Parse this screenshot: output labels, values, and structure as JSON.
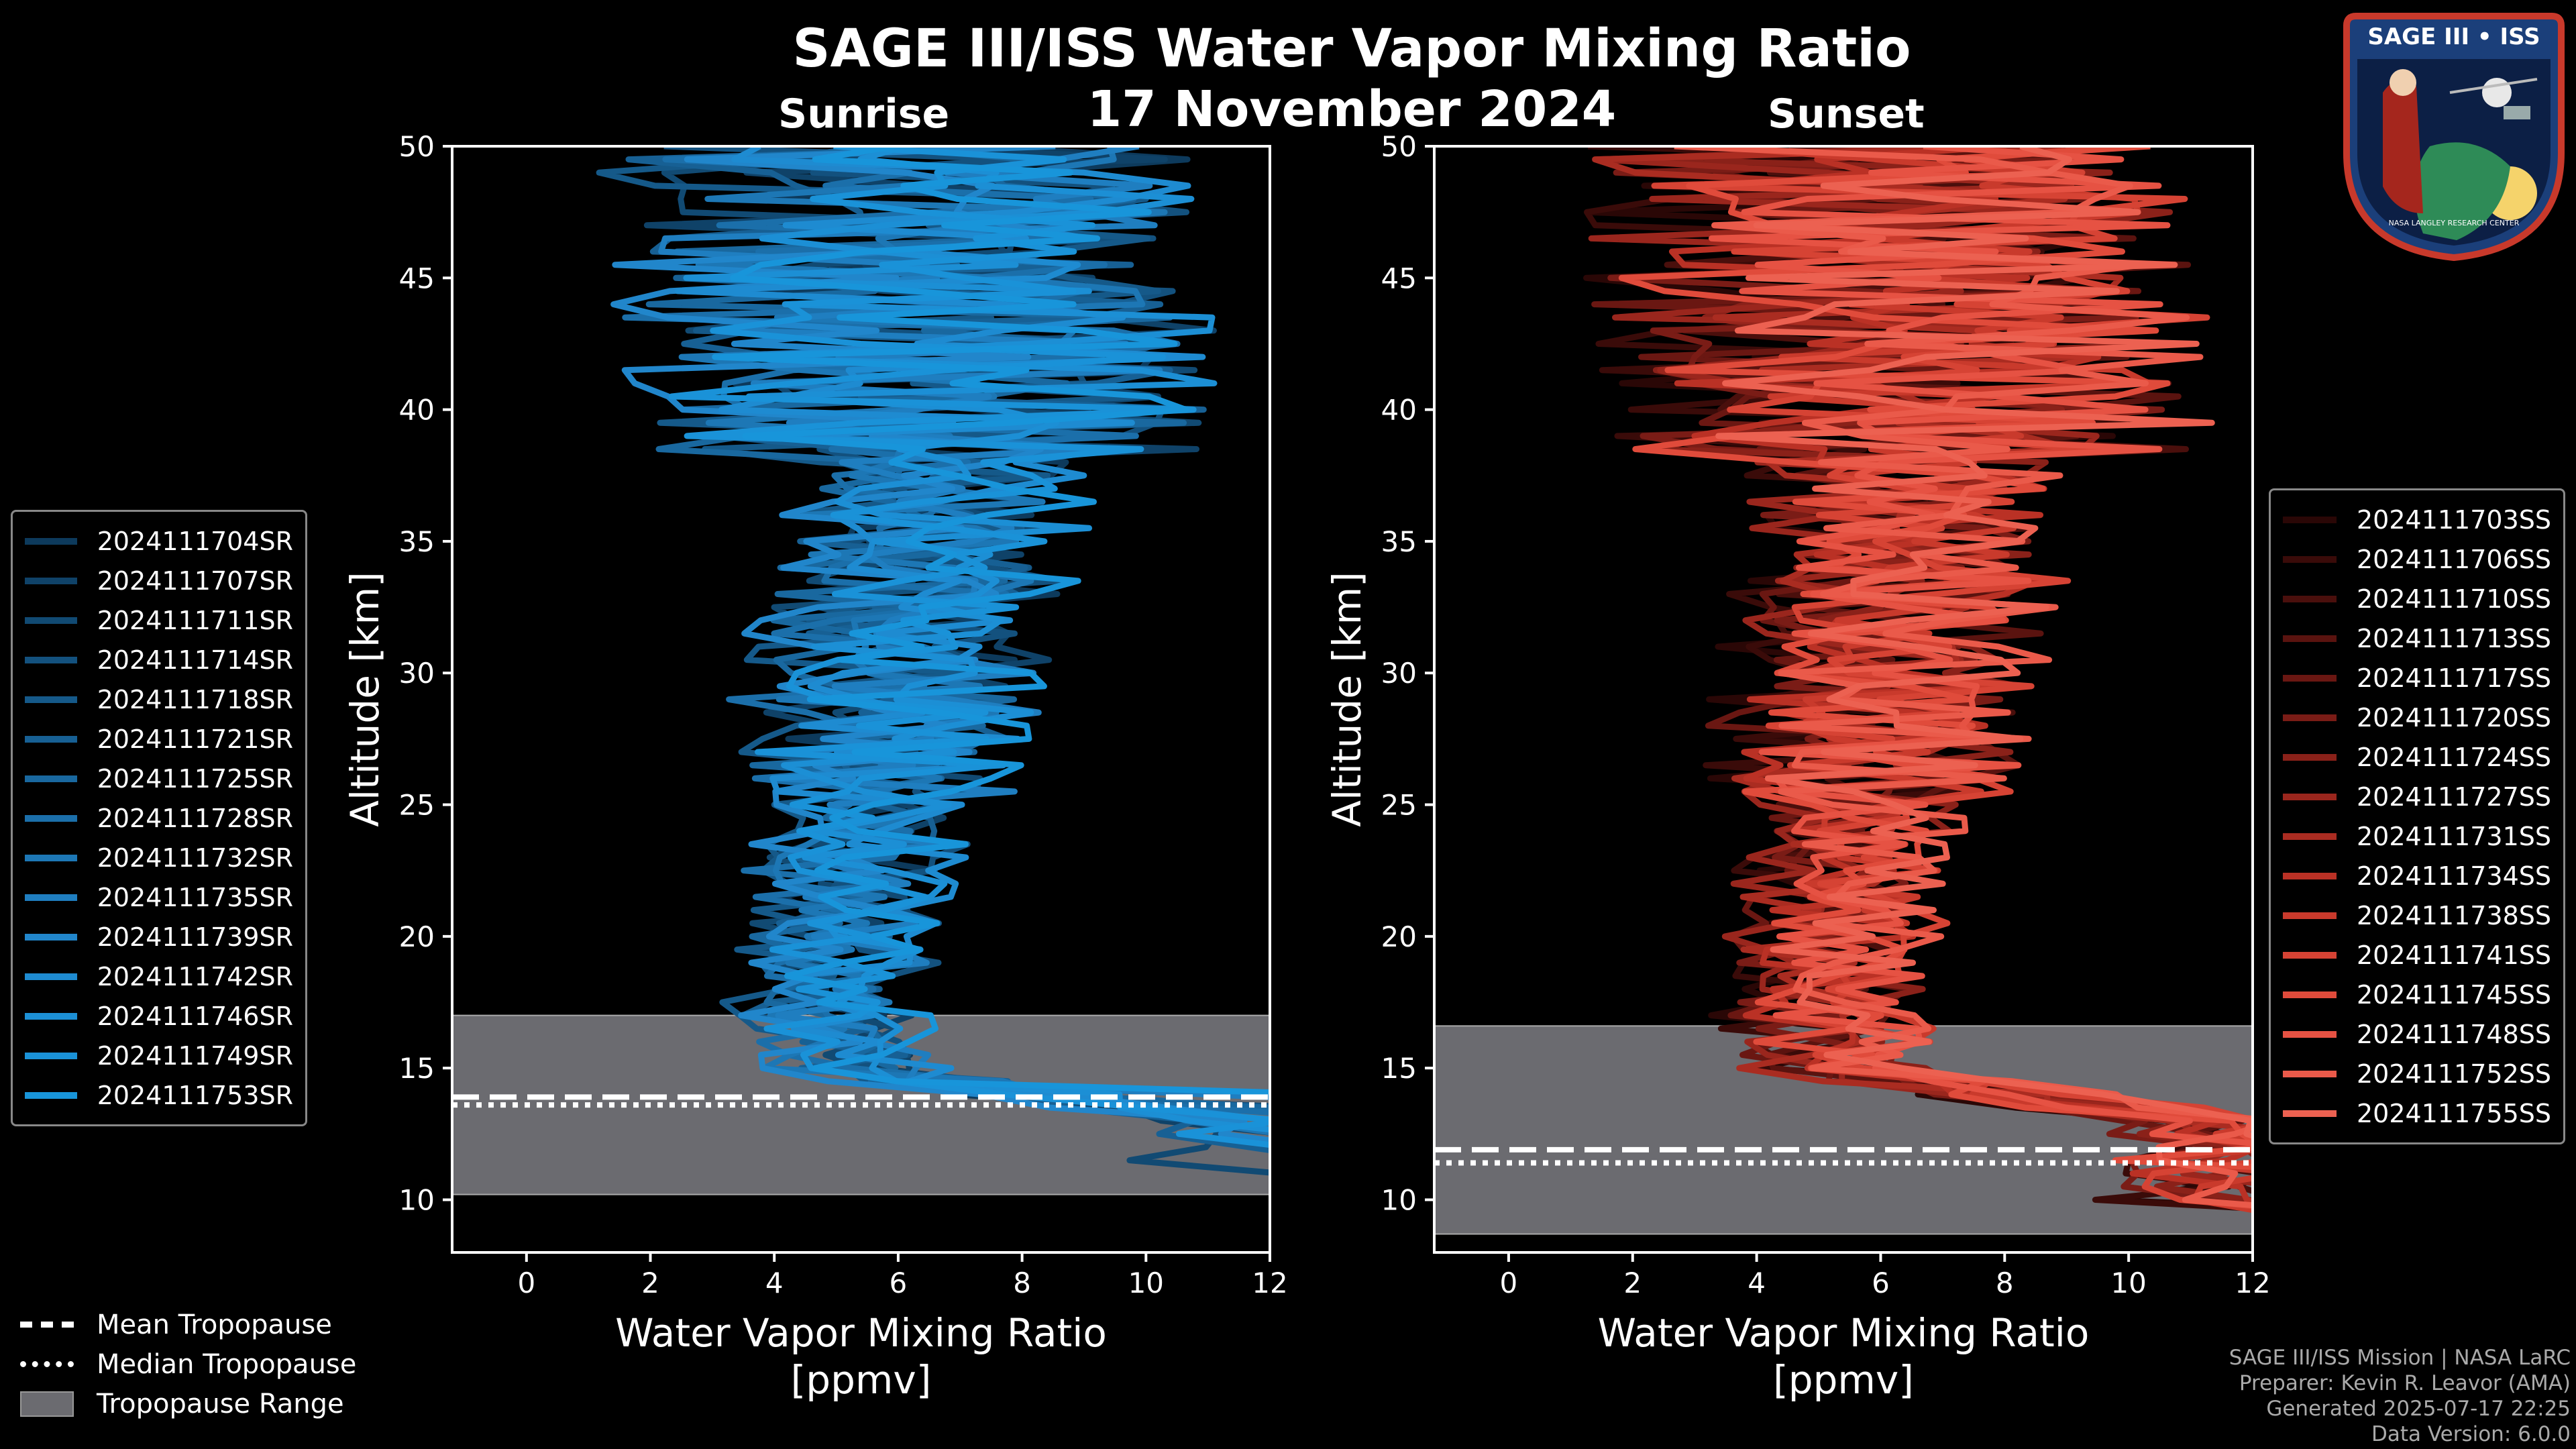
{
  "title": "SAGE III/ISS Water Vapor Mixing Ratio",
  "date": "17 November 2024",
  "colors": {
    "sunrise": "#1e8fd5",
    "sunset": "#e8574a",
    "background": "#000000",
    "tropopause_range": "#6b6b70"
  },
  "panels": {
    "sunrise": {
      "label": "Sunrise"
    },
    "sunset": {
      "label": "Sunset"
    }
  },
  "chart_data": [
    {
      "type": "line",
      "panel": "Sunrise",
      "xlabel_line1": "Water Vapor Mixing Ratio",
      "xlabel_line2": "[ppmv]",
      "ylabel": "Altitude [km]",
      "xlim": [
        -1.2,
        12
      ],
      "ylim": [
        8,
        50
      ],
      "xticks": [
        "0",
        "2",
        "4",
        "6",
        "8",
        "10",
        "12"
      ],
      "yticks": [
        "10",
        "15",
        "20",
        "25",
        "30",
        "35",
        "40",
        "45",
        "50"
      ],
      "tropopause_range": [
        10.2,
        17.0
      ],
      "mean_tropopause": 13.9,
      "median_tropopause": 13.6,
      "series": [
        "2024111704SR",
        "2024111707SR",
        "2024111711SR",
        "2024111714SR",
        "2024111718SR",
        "2024111721SR",
        "2024111725SR",
        "2024111728SR",
        "2024111732SR",
        "2024111735SR",
        "2024111739SR",
        "2024111742SR",
        "2024111746SR",
        "2024111749SR",
        "2024111753SR"
      ],
      "series_colors": [
        "#0d3a5c",
        "#0f4268",
        "#114a73",
        "#13517e",
        "#155989",
        "#176094",
        "#19689f",
        "#1b6faa",
        "#1d77b5",
        "#1f7ec0",
        "#2186cb",
        "#1e8bd1",
        "#1c8fd5",
        "#1a92d8",
        "#1895da"
      ],
      "profile_center": [
        [
          50,
          6.0
        ],
        [
          45,
          6.2
        ],
        [
          40,
          6.8
        ],
        [
          35,
          6.5
        ],
        [
          30,
          6.0
        ],
        [
          25,
          5.5
        ],
        [
          20,
          5.0
        ],
        [
          17,
          4.8
        ],
        [
          15,
          5.2
        ],
        [
          14,
          8
        ],
        [
          13,
          11
        ]
      ]
    },
    {
      "type": "line",
      "panel": "Sunset",
      "xlabel_line1": "Water Vapor Mixing Ratio",
      "xlabel_line2": "[ppmv]",
      "ylabel": "Altitude [km]",
      "xlim": [
        -1.2,
        12
      ],
      "ylim": [
        8,
        50
      ],
      "xticks": [
        "0",
        "2",
        "4",
        "6",
        "8",
        "10",
        "12"
      ],
      "yticks": [
        "10",
        "15",
        "20",
        "25",
        "30",
        "35",
        "40",
        "45",
        "50"
      ],
      "tropopause_range": [
        8.7,
        16.6
      ],
      "mean_tropopause": 11.9,
      "median_tropopause": 11.4,
      "series": [
        "2024111703SS",
        "2024111706SS",
        "2024111710SS",
        "2024111713SS",
        "2024111717SS",
        "2024111720SS",
        "2024111724SS",
        "2024111727SS",
        "2024111731SS",
        "2024111734SS",
        "2024111738SS",
        "2024111741SS",
        "2024111745SS",
        "2024111748SS",
        "2024111752SS",
        "2024111755SS"
      ],
      "series_colors": [
        "#2a0706",
        "#3a0b09",
        "#4a0f0c",
        "#5a130f",
        "#6a1712",
        "#7a1c16",
        "#8a2119",
        "#9a261d",
        "#aa2c21",
        "#ba3125",
        "#c93a2c",
        "#d64334",
        "#e04b3b",
        "#e65243",
        "#ea5a4a",
        "#ec6151"
      ],
      "profile_center": [
        [
          50,
          6.0
        ],
        [
          45,
          6.2
        ],
        [
          40,
          6.5
        ],
        [
          35,
          6.4
        ],
        [
          30,
          6.0
        ],
        [
          25,
          5.6
        ],
        [
          20,
          5.2
        ],
        [
          17,
          5.0
        ],
        [
          15,
          5.2
        ],
        [
          14,
          8
        ],
        [
          13,
          11
        ]
      ]
    }
  ],
  "legend_bottom": {
    "mean": "Mean Tropopause",
    "median": "Median Tropopause",
    "range": "Tropopause Range"
  },
  "credits": {
    "line1": "SAGE III/ISS Mission | NASA LaRC",
    "line2": "Preparer: Kevin R. Leavor (AMA)",
    "line3": "Generated 2025-07-17 22:25",
    "line4": "Data Version: 6.0.0"
  },
  "logo": {
    "top_text": "SAGE III • ISS",
    "bottom_text": "NASA LANGLEY RESEARCH CENTER"
  }
}
